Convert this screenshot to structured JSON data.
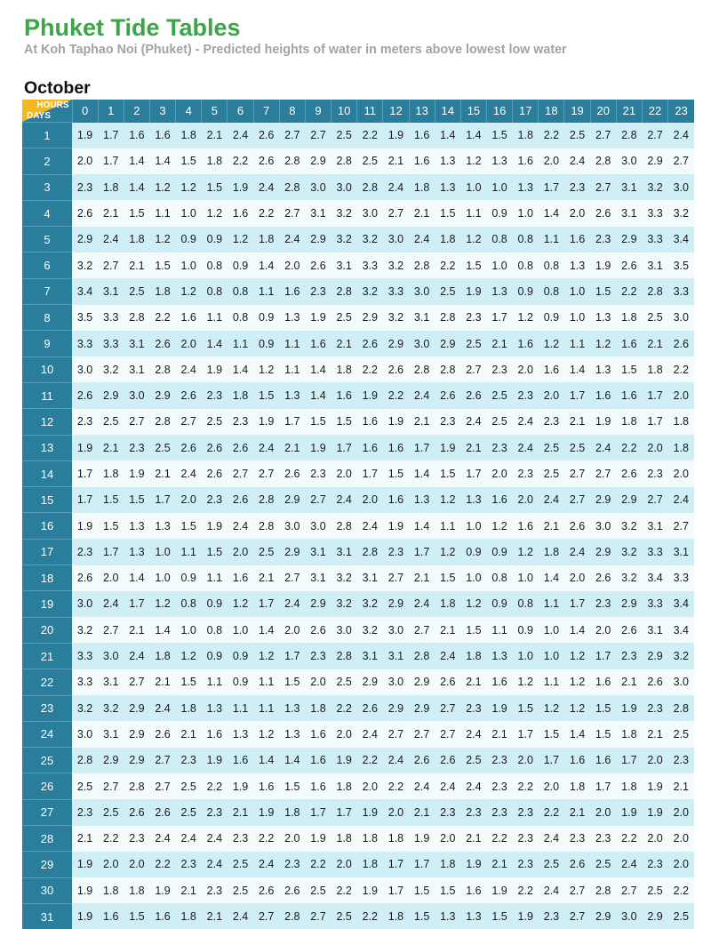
{
  "header": {
    "title": "Phuket Tide Tables",
    "subtitle": "At Koh Taphao Noi (Phuket) - Predicted heights of water in meters above lowest low water",
    "month": "October"
  },
  "table": {
    "corner_hours_label": "HOURS",
    "corner_days_label": "DAYS",
    "hours": [
      "0",
      "1",
      "2",
      "3",
      "4",
      "5",
      "6",
      "7",
      "8",
      "9",
      "10",
      "11",
      "12",
      "13",
      "14",
      "15",
      "16",
      "17",
      "18",
      "19",
      "20",
      "21",
      "22",
      "23"
    ],
    "rows": [
      {
        "day": "1",
        "values": [
          "1.9",
          "1.7",
          "1.6",
          "1.6",
          "1.8",
          "2.1",
          "2.4",
          "2.6",
          "2.7",
          "2.7",
          "2.5",
          "2.2",
          "1.9",
          "1.6",
          "1.4",
          "1.4",
          "1.5",
          "1.8",
          "2.2",
          "2.5",
          "2.7",
          "2.8",
          "2.7",
          "2.4"
        ]
      },
      {
        "day": "2",
        "values": [
          "2.0",
          "1.7",
          "1.4",
          "1.4",
          "1.5",
          "1.8",
          "2.2",
          "2.6",
          "2.8",
          "2.9",
          "2.8",
          "2.5",
          "2.1",
          "1.6",
          "1.3",
          "1.2",
          "1.3",
          "1.6",
          "2.0",
          "2.4",
          "2.8",
          "3.0",
          "2.9",
          "2.7"
        ]
      },
      {
        "day": "3",
        "values": [
          "2.3",
          "1.8",
          "1.4",
          "1.2",
          "1.2",
          "1.5",
          "1.9",
          "2.4",
          "2.8",
          "3.0",
          "3.0",
          "2.8",
          "2.4",
          "1.8",
          "1.3",
          "1.0",
          "1.0",
          "1.3",
          "1.7",
          "2.3",
          "2.7",
          "3.1",
          "3.2",
          "3.0"
        ]
      },
      {
        "day": "4",
        "values": [
          "2.6",
          "2.1",
          "1.5",
          "1.1",
          "1.0",
          "1.2",
          "1.6",
          "2.2",
          "2.7",
          "3.1",
          "3.2",
          "3.0",
          "2.7",
          "2.1",
          "1.5",
          "1.1",
          "0.9",
          "1.0",
          "1.4",
          "2.0",
          "2.6",
          "3.1",
          "3.3",
          "3.2"
        ]
      },
      {
        "day": "5",
        "values": [
          "2.9",
          "2.4",
          "1.8",
          "1.2",
          "0.9",
          "0.9",
          "1.2",
          "1.8",
          "2.4",
          "2.9",
          "3.2",
          "3.2",
          "3.0",
          "2.4",
          "1.8",
          "1.2",
          "0.8",
          "0.8",
          "1.1",
          "1.6",
          "2.3",
          "2.9",
          "3.3",
          "3.4"
        ]
      },
      {
        "day": "6",
        "values": [
          "3.2",
          "2.7",
          "2.1",
          "1.5",
          "1.0",
          "0.8",
          "0.9",
          "1.4",
          "2.0",
          "2.6",
          "3.1",
          "3.3",
          "3.2",
          "2.8",
          "2.2",
          "1.5",
          "1.0",
          "0.8",
          "0.8",
          "1.3",
          "1.9",
          "2.6",
          "3.1",
          "3.5"
        ]
      },
      {
        "day": "7",
        "values": [
          "3.4",
          "3.1",
          "2.5",
          "1.8",
          "1.2",
          "0.8",
          "0.8",
          "1.1",
          "1.6",
          "2.3",
          "2.8",
          "3.2",
          "3.3",
          "3.0",
          "2.5",
          "1.9",
          "1.3",
          "0.9",
          "0.8",
          "1.0",
          "1.5",
          "2.2",
          "2.8",
          "3.3"
        ]
      },
      {
        "day": "8",
        "values": [
          "3.5",
          "3.3",
          "2.8",
          "2.2",
          "1.6",
          "1.1",
          "0.8",
          "0.9",
          "1.3",
          "1.9",
          "2.5",
          "2.9",
          "3.2",
          "3.1",
          "2.8",
          "2.3",
          "1.7",
          "1.2",
          "0.9",
          "1.0",
          "1.3",
          "1.8",
          "2.5",
          "3.0"
        ]
      },
      {
        "day": "9",
        "values": [
          "3.3",
          "3.3",
          "3.1",
          "2.6",
          "2.0",
          "1.4",
          "1.1",
          "0.9",
          "1.1",
          "1.6",
          "2.1",
          "2.6",
          "2.9",
          "3.0",
          "2.9",
          "2.5",
          "2.1",
          "1.6",
          "1.2",
          "1.1",
          "1.2",
          "1.6",
          "2.1",
          "2.6"
        ]
      },
      {
        "day": "10",
        "values": [
          "3.0",
          "3.2",
          "3.1",
          "2.8",
          "2.4",
          "1.9",
          "1.4",
          "1.2",
          "1.1",
          "1.4",
          "1.8",
          "2.2",
          "2.6",
          "2.8",
          "2.8",
          "2.7",
          "2.3",
          "2.0",
          "1.6",
          "1.4",
          "1.3",
          "1.5",
          "1.8",
          "2.2"
        ]
      },
      {
        "day": "11",
        "values": [
          "2.6",
          "2.9",
          "3.0",
          "2.9",
          "2.6",
          "2.3",
          "1.8",
          "1.5",
          "1.3",
          "1.4",
          "1.6",
          "1.9",
          "2.2",
          "2.4",
          "2.6",
          "2.6",
          "2.5",
          "2.3",
          "2.0",
          "1.7",
          "1.6",
          "1.6",
          "1.7",
          "2.0"
        ]
      },
      {
        "day": "12",
        "values": [
          "2.3",
          "2.5",
          "2.7",
          "2.8",
          "2.7",
          "2.5",
          "2.3",
          "1.9",
          "1.7",
          "1.5",
          "1.5",
          "1.6",
          "1.9",
          "2.1",
          "2.3",
          "2.4",
          "2.5",
          "2.4",
          "2.3",
          "2.1",
          "1.9",
          "1.8",
          "1.7",
          "1.8"
        ]
      },
      {
        "day": "13",
        "values": [
          "1.9",
          "2.1",
          "2.3",
          "2.5",
          "2.6",
          "2.6",
          "2.6",
          "2.4",
          "2.1",
          "1.9",
          "1.7",
          "1.6",
          "1.6",
          "1.7",
          "1.9",
          "2.1",
          "2.3",
          "2.4",
          "2.5",
          "2.5",
          "2.4",
          "2.2",
          "2.0",
          "1.8"
        ]
      },
      {
        "day": "14",
        "values": [
          "1.7",
          "1.8",
          "1.9",
          "2.1",
          "2.4",
          "2.6",
          "2.7",
          "2.7",
          "2.6",
          "2.3",
          "2.0",
          "1.7",
          "1.5",
          "1.4",
          "1.5",
          "1.7",
          "2.0",
          "2.3",
          "2.5",
          "2.7",
          "2.7",
          "2.6",
          "2.3",
          "2.0"
        ]
      },
      {
        "day": "15",
        "values": [
          "1.7",
          "1.5",
          "1.5",
          "1.7",
          "2.0",
          "2.3",
          "2.6",
          "2.8",
          "2.9",
          "2.7",
          "2.4",
          "2.0",
          "1.6",
          "1.3",
          "1.2",
          "1.3",
          "1.6",
          "2.0",
          "2.4",
          "2.7",
          "2.9",
          "2.9",
          "2.7",
          "2.4"
        ]
      },
      {
        "day": "16",
        "values": [
          "1.9",
          "1.5",
          "1.3",
          "1.3",
          "1.5",
          "1.9",
          "2.4",
          "2.8",
          "3.0",
          "3.0",
          "2.8",
          "2.4",
          "1.9",
          "1.4",
          "1.1",
          "1.0",
          "1.2",
          "1.6",
          "2.1",
          "2.6",
          "3.0",
          "3.2",
          "3.1",
          "2.7"
        ]
      },
      {
        "day": "17",
        "values": [
          "2.3",
          "1.7",
          "1.3",
          "1.0",
          "1.1",
          "1.5",
          "2.0",
          "2.5",
          "2.9",
          "3.1",
          "3.1",
          "2.8",
          "2.3",
          "1.7",
          "1.2",
          "0.9",
          "0.9",
          "1.2",
          "1.8",
          "2.4",
          "2.9",
          "3.2",
          "3.3",
          "3.1"
        ]
      },
      {
        "day": "18",
        "values": [
          "2.6",
          "2.0",
          "1.4",
          "1.0",
          "0.9",
          "1.1",
          "1.6",
          "2.1",
          "2.7",
          "3.1",
          "3.2",
          "3.1",
          "2.7",
          "2.1",
          "1.5",
          "1.0",
          "0.8",
          "1.0",
          "1.4",
          "2.0",
          "2.6",
          "3.2",
          "3.4",
          "3.3"
        ]
      },
      {
        "day": "19",
        "values": [
          "3.0",
          "2.4",
          "1.7",
          "1.2",
          "0.8",
          "0.9",
          "1.2",
          "1.7",
          "2.4",
          "2.9",
          "3.2",
          "3.2",
          "2.9",
          "2.4",
          "1.8",
          "1.2",
          "0.9",
          "0.8",
          "1.1",
          "1.7",
          "2.3",
          "2.9",
          "3.3",
          "3.4"
        ]
      },
      {
        "day": "20",
        "values": [
          "3.2",
          "2.7",
          "2.1",
          "1.4",
          "1.0",
          "0.8",
          "1.0",
          "1.4",
          "2.0",
          "2.6",
          "3.0",
          "3.2",
          "3.0",
          "2.7",
          "2.1",
          "1.5",
          "1.1",
          "0.9",
          "1.0",
          "1.4",
          "2.0",
          "2.6",
          "3.1",
          "3.4"
        ]
      },
      {
        "day": "21",
        "values": [
          "3.3",
          "3.0",
          "2.4",
          "1.8",
          "1.2",
          "0.9",
          "0.9",
          "1.2",
          "1.7",
          "2.3",
          "2.8",
          "3.1",
          "3.1",
          "2.8",
          "2.4",
          "1.8",
          "1.3",
          "1.0",
          "1.0",
          "1.2",
          "1.7",
          "2.3",
          "2.9",
          "3.2"
        ]
      },
      {
        "day": "22",
        "values": [
          "3.3",
          "3.1",
          "2.7",
          "2.1",
          "1.5",
          "1.1",
          "0.9",
          "1.1",
          "1.5",
          "2.0",
          "2.5",
          "2.9",
          "3.0",
          "2.9",
          "2.6",
          "2.1",
          "1.6",
          "1.2",
          "1.1",
          "1.2",
          "1.6",
          "2.1",
          "2.6",
          "3.0"
        ]
      },
      {
        "day": "23",
        "values": [
          "3.2",
          "3.2",
          "2.9",
          "2.4",
          "1.8",
          "1.3",
          "1.1",
          "1.1",
          "1.3",
          "1.8",
          "2.2",
          "2.6",
          "2.9",
          "2.9",
          "2.7",
          "2.3",
          "1.9",
          "1.5",
          "1.2",
          "1.2",
          "1.5",
          "1.9",
          "2.3",
          "2.8"
        ]
      },
      {
        "day": "24",
        "values": [
          "3.0",
          "3.1",
          "2.9",
          "2.6",
          "2.1",
          "1.6",
          "1.3",
          "1.2",
          "1.3",
          "1.6",
          "2.0",
          "2.4",
          "2.7",
          "2.7",
          "2.7",
          "2.4",
          "2.1",
          "1.7",
          "1.5",
          "1.4",
          "1.5",
          "1.8",
          "2.1",
          "2.5"
        ]
      },
      {
        "day": "25",
        "values": [
          "2.8",
          "2.9",
          "2.9",
          "2.7",
          "2.3",
          "1.9",
          "1.6",
          "1.4",
          "1.4",
          "1.6",
          "1.9",
          "2.2",
          "2.4",
          "2.6",
          "2.6",
          "2.5",
          "2.3",
          "2.0",
          "1.7",
          "1.6",
          "1.6",
          "1.7",
          "2.0",
          "2.3"
        ]
      },
      {
        "day": "26",
        "values": [
          "2.5",
          "2.7",
          "2.8",
          "2.7",
          "2.5",
          "2.2",
          "1.9",
          "1.6",
          "1.5",
          "1.6",
          "1.8",
          "2.0",
          "2.2",
          "2.4",
          "2.4",
          "2.4",
          "2.3",
          "2.2",
          "2.0",
          "1.8",
          "1.7",
          "1.8",
          "1.9",
          "2.1"
        ]
      },
      {
        "day": "27",
        "values": [
          "2.3",
          "2.5",
          "2.6",
          "2.6",
          "2.5",
          "2.3",
          "2.1",
          "1.9",
          "1.8",
          "1.7",
          "1.7",
          "1.9",
          "2.0",
          "2.1",
          "2.3",
          "2.3",
          "2.3",
          "2.3",
          "2.2",
          "2.1",
          "2.0",
          "1.9",
          "1.9",
          "2.0"
        ]
      },
      {
        "day": "28",
        "values": [
          "2.1",
          "2.2",
          "2.3",
          "2.4",
          "2.4",
          "2.4",
          "2.3",
          "2.2",
          "2.0",
          "1.9",
          "1.8",
          "1.8",
          "1.8",
          "1.9",
          "2.0",
          "2.1",
          "2.2",
          "2.3",
          "2.4",
          "2.3",
          "2.3",
          "2.2",
          "2.0",
          "2.0"
        ]
      },
      {
        "day": "29",
        "values": [
          "1.9",
          "2.0",
          "2.0",
          "2.2",
          "2.3",
          "2.4",
          "2.5",
          "2.4",
          "2.3",
          "2.2",
          "2.0",
          "1.8",
          "1.7",
          "1.7",
          "1.8",
          "1.9",
          "2.1",
          "2.3",
          "2.5",
          "2.6",
          "2.5",
          "2.4",
          "2.3",
          "2.0"
        ]
      },
      {
        "day": "30",
        "values": [
          "1.9",
          "1.8",
          "1.8",
          "1.9",
          "2.1",
          "2.3",
          "2.5",
          "2.6",
          "2.6",
          "2.5",
          "2.2",
          "1.9",
          "1.7",
          "1.5",
          "1.5",
          "1.6",
          "1.9",
          "2.2",
          "2.4",
          "2.7",
          "2.8",
          "2.7",
          "2.5",
          "2.2"
        ]
      },
      {
        "day": "31",
        "values": [
          "1.9",
          "1.6",
          "1.5",
          "1.6",
          "1.8",
          "2.1",
          "2.4",
          "2.7",
          "2.8",
          "2.7",
          "2.5",
          "2.2",
          "1.8",
          "1.5",
          "1.3",
          "1.3",
          "1.5",
          "1.9",
          "2.3",
          "2.7",
          "2.9",
          "3.0",
          "2.9",
          "2.5"
        ]
      }
    ]
  }
}
